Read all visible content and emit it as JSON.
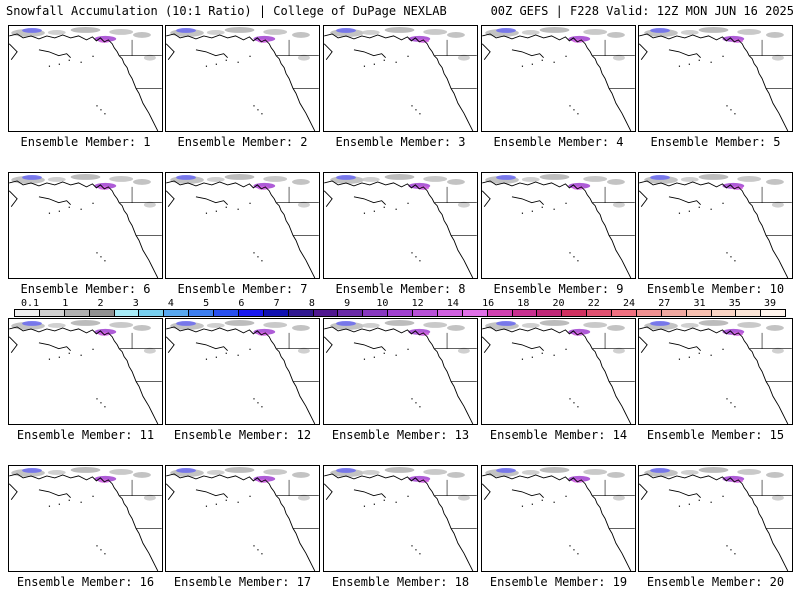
{
  "header": {
    "left": "Snowfall Accumulation (10:1 Ratio) | College of DuPage NEXLAB",
    "right": "00Z GEFS | F228 Valid: 12Z MON JUN 16 2025"
  },
  "panels": [
    {
      "label": "Ensemble Member: 1"
    },
    {
      "label": "Ensemble Member: 2"
    },
    {
      "label": "Ensemble Member: 3"
    },
    {
      "label": "Ensemble Member: 4"
    },
    {
      "label": "Ensemble Member: 5"
    },
    {
      "label": "Ensemble Member: 6"
    },
    {
      "label": "Ensemble Member: 7"
    },
    {
      "label": "Ensemble Member: 8"
    },
    {
      "label": "Ensemble Member: 9"
    },
    {
      "label": "Ensemble Member: 10"
    },
    {
      "label": "Ensemble Member: 11"
    },
    {
      "label": "Ensemble Member: 12"
    },
    {
      "label": "Ensemble Member: 13"
    },
    {
      "label": "Ensemble Member: 14"
    },
    {
      "label": "Ensemble Member: 15"
    },
    {
      "label": "Ensemble Member: 16"
    },
    {
      "label": "Ensemble Member: 17"
    },
    {
      "label": "Ensemble Member: 18"
    },
    {
      "label": "Ensemble Member: 19"
    },
    {
      "label": "Ensemble Member: 20"
    }
  ],
  "legend": {
    "ticks": [
      "0.1",
      "1",
      "2",
      "3",
      "4",
      "5",
      "6",
      "7",
      "8",
      "9",
      "10",
      "12",
      "14",
      "16",
      "18",
      "20",
      "22",
      "24",
      "27",
      "31",
      "35",
      "39"
    ],
    "colors": [
      "#f0f0f0",
      "#d0d0d0",
      "#b0b0b0",
      "#909090",
      "#a8ecf8",
      "#78d0f0",
      "#58a8f0",
      "#3c7ef0",
      "#2850f0",
      "#1818f0",
      "#1010b0",
      "#301890",
      "#501890",
      "#6a2aa8",
      "#8838c0",
      "#a040d0",
      "#b850d8",
      "#d060e0",
      "#e070e8",
      "#d040b0",
      "#c83090",
      "#c02878",
      "#d03060",
      "#e05070",
      "#f07080",
      "#f09090",
      "#f0a8a0",
      "#f8c0b0",
      "#fad4c4",
      "#fce6d8",
      "#fff4ec"
    ]
  }
}
